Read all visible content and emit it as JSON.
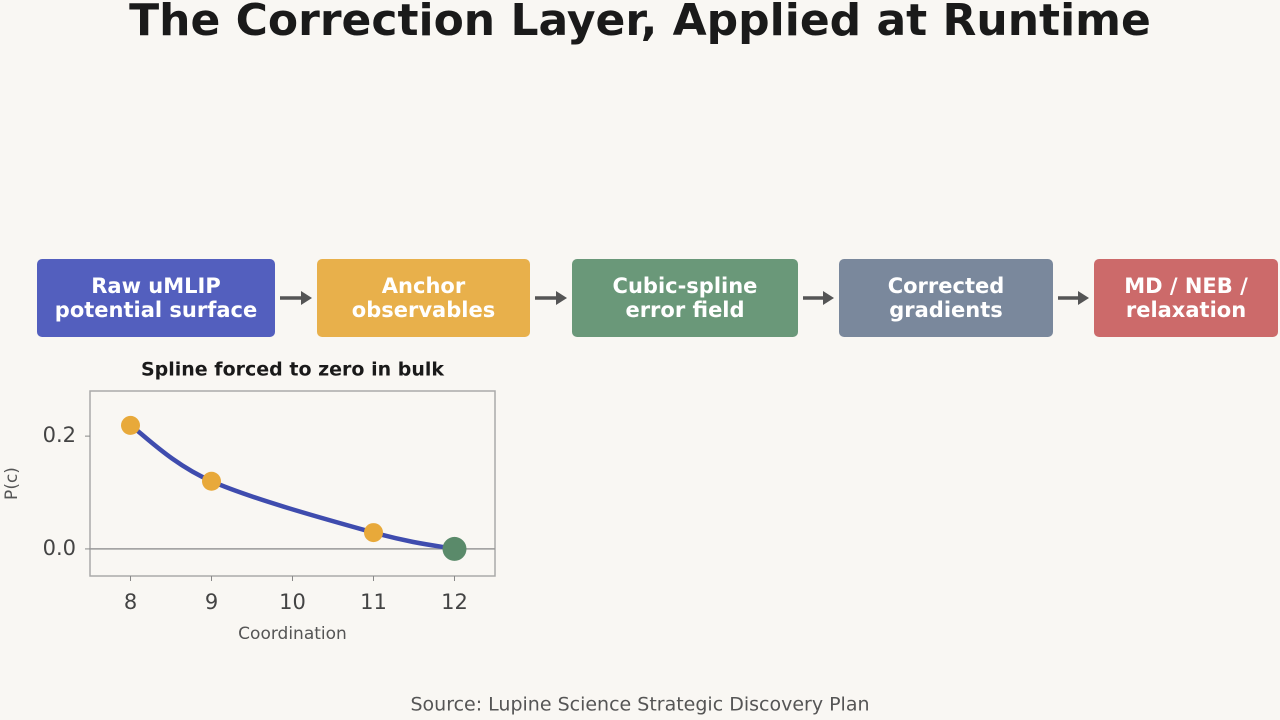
{
  "title": "The Correction Layer, Applied at Runtime",
  "nodes": [
    {
      "label": [
        "Raw uMLIP",
        "potential surface"
      ],
      "color": "#535fbe"
    },
    {
      "label": [
        "Anchor",
        "observables"
      ],
      "color": "#e8b04b"
    },
    {
      "label": [
        "Cubic-spline",
        "error field"
      ],
      "color": "#6a9879"
    },
    {
      "label": [
        "Corrected",
        "gradients"
      ],
      "color": "#7a889c"
    },
    {
      "label": [
        "MD / NEB /",
        "relaxation"
      ],
      "color": "#cc6a6a"
    }
  ],
  "chart_data": {
    "type": "line",
    "title": "Spline forced to zero in bulk",
    "xlabel": "Coordination",
    "ylabel": "P(c)",
    "x": [
      8,
      9,
      11,
      12
    ],
    "series": [
      {
        "color": "#3f4cae",
        "values": [
          0.219,
          0.12,
          0.029,
          0.0
        ],
        "marker_colors": [
          "#e8a93a",
          "#e8a93a",
          "#e8a93a",
          "#5a8a6a"
        ]
      }
    ],
    "xlim": [
      7.5,
      12.5
    ],
    "xticks": [
      8,
      9,
      10,
      11,
      12
    ],
    "ylim": [
      -0.048,
      0.28
    ],
    "yticks": [
      {
        "value": 0,
        "label": "0.0"
      },
      0.2
    ],
    "hline": 0
  },
  "source": "Source: Lupine Science Strategic Discovery Plan"
}
